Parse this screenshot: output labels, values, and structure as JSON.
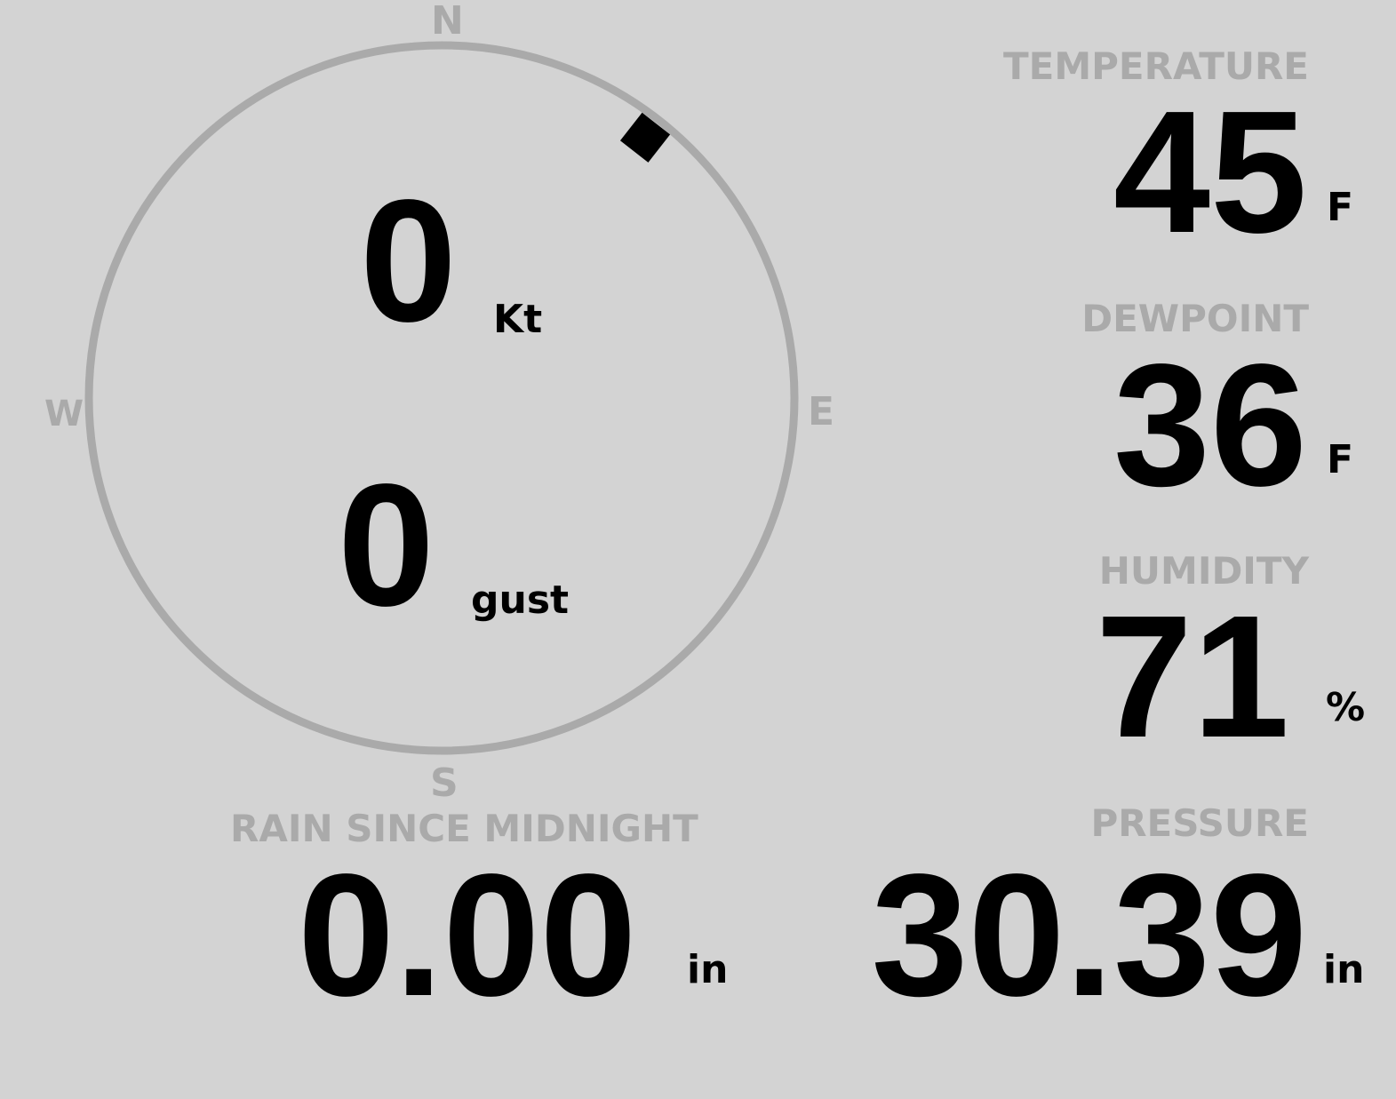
{
  "wind": {
    "speed": "0",
    "speed_unit": "Kt",
    "gust": "0",
    "gust_unit": "gust",
    "direction_degrees": 38,
    "compass": {
      "n": "N",
      "e": "E",
      "s": "S",
      "w": "W"
    },
    "ring_color": "#aaaaaa"
  },
  "temperature": {
    "label": "TEMPERATURE",
    "value": "45",
    "unit": "F"
  },
  "dewpoint": {
    "label": "DEWPOINT",
    "value": "36",
    "unit": "F"
  },
  "humidity": {
    "label": "HUMIDITY",
    "value": "71",
    "unit": "%"
  },
  "rain": {
    "label": "RAIN SINCE MIDNIGHT",
    "value": "0.00",
    "unit": "in"
  },
  "pressure": {
    "label": "PRESSURE",
    "value": "30.39",
    "unit": "in"
  },
  "colors": {
    "background": "#d3d3d3",
    "label": "#aaaaaa",
    "value": "#000000"
  }
}
